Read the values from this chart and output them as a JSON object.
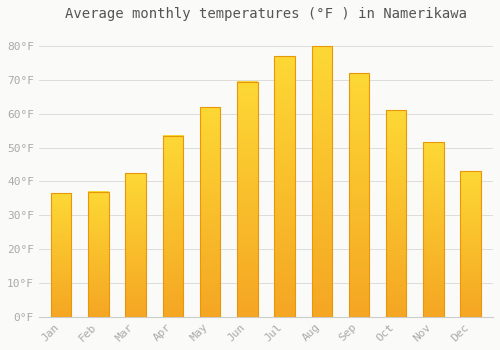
{
  "title": "Average monthly temperatures (°F ) in Namerikawa",
  "months": [
    "Jan",
    "Feb",
    "Mar",
    "Apr",
    "May",
    "Jun",
    "Jul",
    "Aug",
    "Sep",
    "Oct",
    "Nov",
    "Dec"
  ],
  "values": [
    36.5,
    37.0,
    42.5,
    53.5,
    62.0,
    69.5,
    77.0,
    80.0,
    72.0,
    61.0,
    51.5,
    43.0
  ],
  "bar_color_top": "#FDD835",
  "bar_color_bottom": "#F5A623",
  "bar_edge_color": "#E8960A",
  "background_color": "#FAFAF8",
  "grid_color": "#DDDDDD",
  "yticks": [
    0,
    10,
    20,
    30,
    40,
    50,
    60,
    70,
    80
  ],
  "ylim": [
    0,
    85
  ],
  "title_fontsize": 10,
  "tick_fontsize": 8,
  "tick_color": "#AAAAAA",
  "font_family": "monospace",
  "bar_width": 0.55
}
